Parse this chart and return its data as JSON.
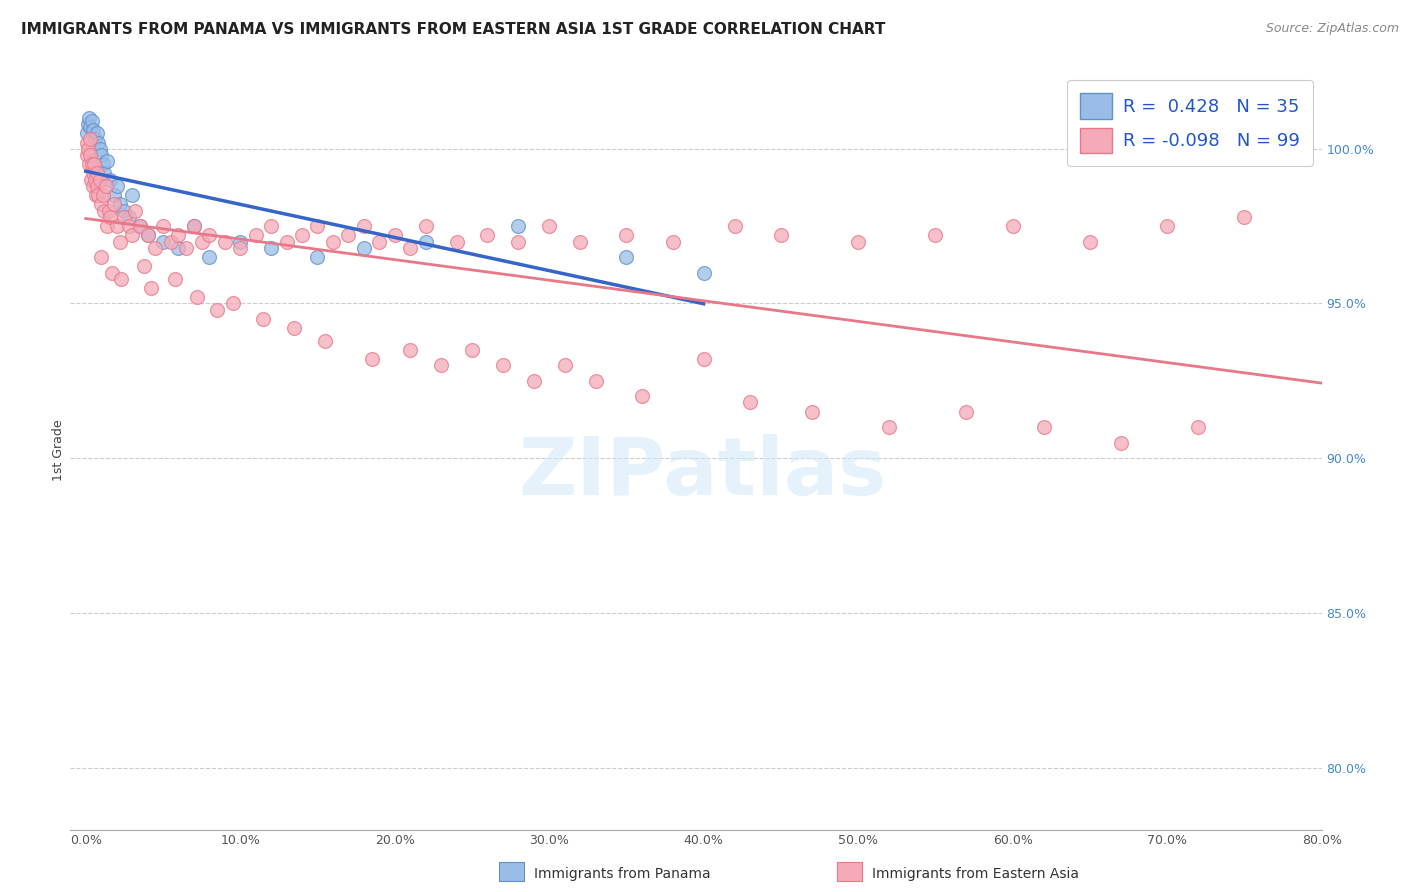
{
  "title": "IMMIGRANTS FROM PANAMA VS IMMIGRANTS FROM EASTERN ASIA 1ST GRADE CORRELATION CHART",
  "source": "Source: ZipAtlas.com",
  "ylabel": "1st Grade",
  "watermark": "ZIPatlas",
  "legend_blue_R": "0.428",
  "legend_blue_N": "35",
  "legend_pink_R": "-0.098",
  "legend_pink_N": "99",
  "x_tick_vals": [
    0,
    10,
    20,
    30,
    40,
    50,
    60,
    70,
    80
  ],
  "y_tick_vals": [
    80,
    85,
    90,
    95,
    100
  ],
  "xlim": [
    -1,
    80
  ],
  "ylim": [
    78,
    102.5
  ],
  "blue_scatter_x": [
    0.1,
    0.15,
    0.2,
    0.3,
    0.4,
    0.5,
    0.6,
    0.7,
    0.8,
    0.9,
    1.0,
    1.1,
    1.2,
    1.4,
    1.6,
    1.8,
    2.0,
    2.2,
    2.5,
    2.8,
    3.0,
    3.5,
    4.0,
    5.0,
    6.0,
    7.0,
    8.0,
    10.0,
    12.0,
    15.0,
    18.0,
    22.0,
    28.0,
    35.0,
    40.0
  ],
  "blue_scatter_y": [
    100.5,
    100.8,
    101.0,
    100.7,
    100.9,
    100.6,
    100.3,
    100.5,
    100.2,
    100.0,
    99.8,
    99.5,
    99.2,
    99.6,
    99.0,
    98.5,
    98.8,
    98.2,
    98.0,
    97.8,
    98.5,
    97.5,
    97.2,
    97.0,
    96.8,
    97.5,
    96.5,
    97.0,
    96.8,
    96.5,
    96.8,
    97.0,
    97.5,
    96.5,
    96.0
  ],
  "pink_scatter_x": [
    0.05,
    0.1,
    0.15,
    0.2,
    0.25,
    0.3,
    0.35,
    0.4,
    0.45,
    0.5,
    0.55,
    0.6,
    0.65,
    0.7,
    0.75,
    0.8,
    0.9,
    1.0,
    1.1,
    1.2,
    1.3,
    1.4,
    1.5,
    1.6,
    1.8,
    2.0,
    2.2,
    2.5,
    2.8,
    3.0,
    3.2,
    3.5,
    4.0,
    4.5,
    5.0,
    5.5,
    6.0,
    6.5,
    7.0,
    7.5,
    8.0,
    9.0,
    10.0,
    11.0,
    12.0,
    13.0,
    14.0,
    15.0,
    16.0,
    17.0,
    18.0,
    19.0,
    20.0,
    21.0,
    22.0,
    24.0,
    26.0,
    28.0,
    30.0,
    32.0,
    35.0,
    38.0,
    42.0,
    45.0,
    50.0,
    55.0,
    60.0,
    65.0,
    70.0,
    75.0,
    3.8,
    4.2,
    5.8,
    7.2,
    8.5,
    9.5,
    11.5,
    13.5,
    15.5,
    18.5,
    21.0,
    23.0,
    25.0,
    27.0,
    29.0,
    31.0,
    33.0,
    36.0,
    40.0,
    43.0,
    47.0,
    52.0,
    57.0,
    62.0,
    67.0,
    72.0,
    1.0,
    1.7,
    2.3
  ],
  "pink_scatter_y": [
    100.2,
    99.8,
    100.0,
    99.5,
    99.8,
    100.3,
    99.0,
    99.5,
    99.2,
    98.8,
    99.5,
    99.0,
    98.5,
    99.2,
    98.8,
    98.5,
    99.0,
    98.2,
    98.5,
    98.0,
    98.8,
    97.5,
    98.0,
    97.8,
    98.2,
    97.5,
    97.0,
    97.8,
    97.5,
    97.2,
    98.0,
    97.5,
    97.2,
    96.8,
    97.5,
    97.0,
    97.2,
    96.8,
    97.5,
    97.0,
    97.2,
    97.0,
    96.8,
    97.2,
    97.5,
    97.0,
    97.2,
    97.5,
    97.0,
    97.2,
    97.5,
    97.0,
    97.2,
    96.8,
    97.5,
    97.0,
    97.2,
    97.0,
    97.5,
    97.0,
    97.2,
    97.0,
    97.5,
    97.2,
    97.0,
    97.2,
    97.5,
    97.0,
    97.5,
    97.8,
    96.2,
    95.5,
    95.8,
    95.2,
    94.8,
    95.0,
    94.5,
    94.2,
    93.8,
    93.2,
    93.5,
    93.0,
    93.5,
    93.0,
    92.5,
    93.0,
    92.5,
    92.0,
    93.2,
    91.8,
    91.5,
    91.0,
    91.5,
    91.0,
    90.5,
    91.0,
    96.5,
    96.0,
    95.8
  ],
  "blue_line_x0": 0,
  "blue_line_x1": 40,
  "pink_line_x0": 0,
  "pink_line_x1": 80,
  "blue_line_color": "#3565c8",
  "pink_line_color": "#e87888",
  "blue_scatter_color": "#9abde8",
  "pink_scatter_color": "#f4aab8",
  "blue_edge_color": "#6090c8",
  "pink_edge_color": "#e87888",
  "grid_color": "#cccccc",
  "bg_color": "#ffffff",
  "title_fontsize": 11,
  "axis_label_fontsize": 9,
  "tick_fontsize": 9,
  "legend_fontsize": 13,
  "source_fontsize": 9,
  "ylabel_color": "#444444",
  "right_tick_color": "#4488cc",
  "bottom_legend_labels": [
    "Immigrants from Panama",
    "Immigrants from Eastern Asia"
  ]
}
